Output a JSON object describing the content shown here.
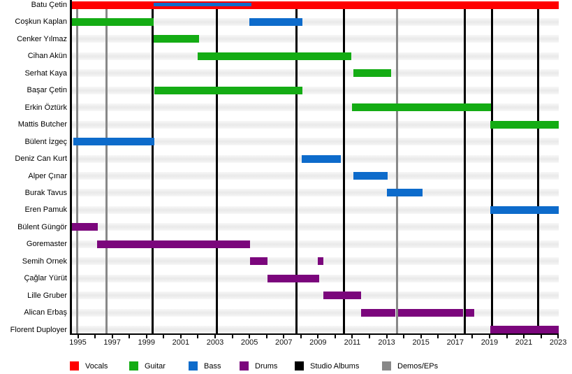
{
  "chart_data": {
    "type": "bar",
    "subtype": "band-member-gantt-timeline",
    "title": "",
    "x_axis": {
      "start": 1994.65,
      "end": 2023.05,
      "tick_years_from": 1995,
      "tick_years_to": 2023,
      "tick_interval": 1,
      "label_years": [
        1995,
        1997,
        1999,
        2001,
        2003,
        2005,
        2007,
        2009,
        2011,
        2013,
        2015,
        2017,
        2019,
        2021,
        2023
      ]
    },
    "role_colors": {
      "Vocals": "#ff0000",
      "Guitar": "#14ac14",
      "Bass": "#0d6bcb",
      "Drums": "#7b067c"
    },
    "members": [
      {
        "name": "Batu Çetin",
        "bars": [
          {
            "role": "Vocals",
            "start": 1994.65,
            "end": 2023.05
          },
          {
            "role": "Bass",
            "start": 1999.4,
            "end": 2005.1,
            "thin": true
          }
        ]
      },
      {
        "name": "Coşkun Kaplan",
        "bars": [
          {
            "role": "Guitar",
            "start": 1994.65,
            "end": 1999.4
          },
          {
            "role": "Bass",
            "start": 2005.0,
            "end": 2008.1
          }
        ]
      },
      {
        "name": "Cenker Yılmaz",
        "bars": [
          {
            "role": "Guitar",
            "start": 1999.4,
            "end": 2002.05
          }
        ]
      },
      {
        "name": "Cihan Akün",
        "bars": [
          {
            "role": "Guitar",
            "start": 2002.0,
            "end": 2010.95
          }
        ]
      },
      {
        "name": "Serhat Kaya",
        "bars": [
          {
            "role": "Guitar",
            "start": 2011.05,
            "end": 2013.25
          }
        ]
      },
      {
        "name": "Başar Çetin",
        "bars": [
          {
            "role": "Guitar",
            "start": 1999.45,
            "end": 2008.1
          }
        ]
      },
      {
        "name": "Erkin Öztürk",
        "bars": [
          {
            "role": "Guitar",
            "start": 2011.0,
            "end": 2019.1
          }
        ]
      },
      {
        "name": "Mattis Butcher",
        "bars": [
          {
            "role": "Guitar",
            "start": 2019.05,
            "end": 2023.05
          }
        ]
      },
      {
        "name": "Bülent İzgeç",
        "bars": [
          {
            "role": "Bass",
            "start": 1994.75,
            "end": 1999.45
          }
        ]
      },
      {
        "name": "Deniz Can Kurt",
        "bars": [
          {
            "role": "Bass",
            "start": 2008.05,
            "end": 2010.33
          }
        ]
      },
      {
        "name": "Alper Çınar",
        "bars": [
          {
            "role": "Bass",
            "start": 2011.05,
            "end": 2013.05
          }
        ]
      },
      {
        "name": "Burak Tavus",
        "bars": [
          {
            "role": "Bass",
            "start": 2013.0,
            "end": 2015.1
          }
        ]
      },
      {
        "name": "Eren Pamuk",
        "bars": [
          {
            "role": "Bass",
            "start": 2019.05,
            "end": 2023.05
          }
        ]
      },
      {
        "name": "Bülent Güngör",
        "bars": [
          {
            "role": "Drums",
            "start": 1994.65,
            "end": 1996.15
          }
        ]
      },
      {
        "name": "Goremaster",
        "bars": [
          {
            "role": "Drums",
            "start": 1996.1,
            "end": 2005.05
          }
        ]
      },
      {
        "name": "Semih Ornek",
        "bars": [
          {
            "role": "Drums",
            "start": 2005.05,
            "end": 2006.05
          },
          {
            "role": "Drums",
            "start": 2008.98,
            "end": 2009.3
          }
        ]
      },
      {
        "name": "Çağlar Yürüt",
        "bars": [
          {
            "role": "Drums",
            "start": 2006.05,
            "end": 2009.05
          }
        ]
      },
      {
        "name": "Lille Gruber",
        "bars": [
          {
            "role": "Drums",
            "start": 2009.3,
            "end": 2011.5
          }
        ]
      },
      {
        "name": "Alican Erbaş",
        "bars": [
          {
            "role": "Drums",
            "start": 2011.5,
            "end": 2013.5
          },
          {
            "role": "Drums",
            "start": 2013.68,
            "end": 2017.45
          },
          {
            "role": "Drums",
            "start": 2017.62,
            "end": 2018.1
          }
        ]
      },
      {
        "name": "Florent Duployer",
        "bars": [
          {
            "role": "Drums",
            "start": 2019.05,
            "end": 2023.05
          }
        ]
      }
    ],
    "events": {
      "studio_albums": {
        "label": "Studio Albums",
        "color": "#000000",
        "years": [
          1999.35,
          2003.1,
          2007.75,
          2010.5,
          2017.55,
          2019.15,
          2021.85
        ]
      },
      "demos_eps": {
        "label": "Demos/EPs",
        "color": "#888888",
        "years": [
          1994.95,
          1996.65,
          2013.6
        ]
      }
    },
    "legend": [
      {
        "label": "Vocals",
        "color": "#ff0000"
      },
      {
        "label": "Guitar",
        "color": "#14ac14"
      },
      {
        "label": "Bass",
        "color": "#0d6bcb"
      },
      {
        "label": "Drums",
        "color": "#7b067c"
      },
      {
        "label": "Studio Albums",
        "color": "#000000"
      },
      {
        "label": "Demos/EPs",
        "color": "#888888"
      }
    ],
    "legend_position": "bottom",
    "grid": false
  }
}
